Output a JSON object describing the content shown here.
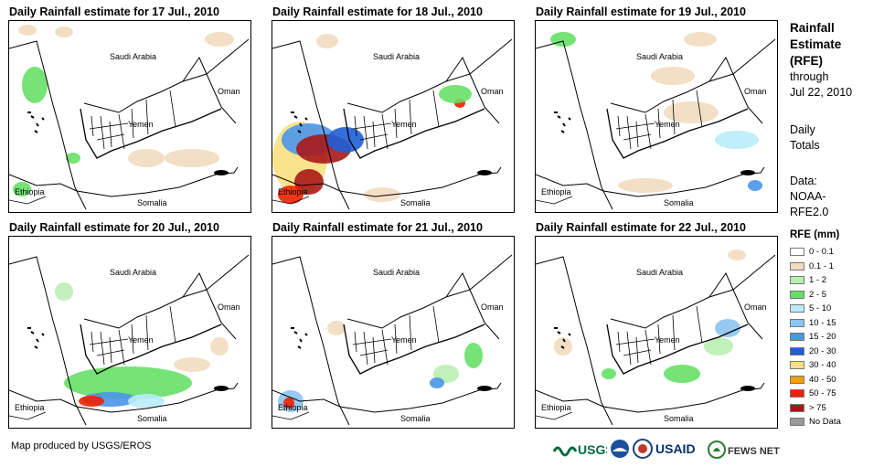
{
  "panels": [
    {
      "title": "Daily Rainfall estimate for 17 Jul., 2010"
    },
    {
      "title": "Daily Rainfall estimate for 18 Jul., 2010"
    },
    {
      "title": "Daily Rainfall estimate for 19 Jul., 2010"
    },
    {
      "title": "Daily Rainfall estimate for 20 Jul., 2010"
    },
    {
      "title": "Daily Rainfall estimate for 21 Jul., 2010"
    },
    {
      "title": "Daily Rainfall estimate for 22 Jul., 2010"
    }
  ],
  "map_labels": {
    "saudi": "Saudi Arabia",
    "oman": "Oman",
    "yemen": "Yemen",
    "ethiopia": "Ethiopia",
    "somalia": "Somalia"
  },
  "side": {
    "title1": "Rainfall",
    "title2": "Estimate",
    "title3": "(RFE)",
    "through": "through",
    "date": "Jul 22, 2010",
    "daily": "Daily",
    "totals": "Totals",
    "data_label": "Data:",
    "source1": "NOAA-",
    "source2": "RFE2.0"
  },
  "legend": {
    "title": "RFE (mm)",
    "items": [
      {
        "label": "0 - 0.1",
        "color": "#ffffff"
      },
      {
        "label": "0.1 - 1",
        "color": "#f2dcc0"
      },
      {
        "label": "1 - 2",
        "color": "#b8f0b0"
      },
      {
        "label": "2 - 5",
        "color": "#66e066"
      },
      {
        "label": "5 - 10",
        "color": "#b9ecfa"
      },
      {
        "label": "10 - 15",
        "color": "#8cc4f0"
      },
      {
        "label": "15 - 20",
        "color": "#4a96e8"
      },
      {
        "label": "20 - 30",
        "color": "#1e5fd8"
      },
      {
        "label": "30 - 40",
        "color": "#f8e080"
      },
      {
        "label": "40 - 50",
        "color": "#f4a000"
      },
      {
        "label": "50 - 75",
        "color": "#f02000"
      },
      {
        "label": "> 75",
        "color": "#a81818"
      },
      {
        "label": "No Data",
        "color": "#999999"
      }
    ]
  },
  "footer": "Map produced by USGS/EROS",
  "logos": {
    "usgs": "USGS",
    "usaid": "USAID",
    "fewsnet": "FEWS NET"
  }
}
